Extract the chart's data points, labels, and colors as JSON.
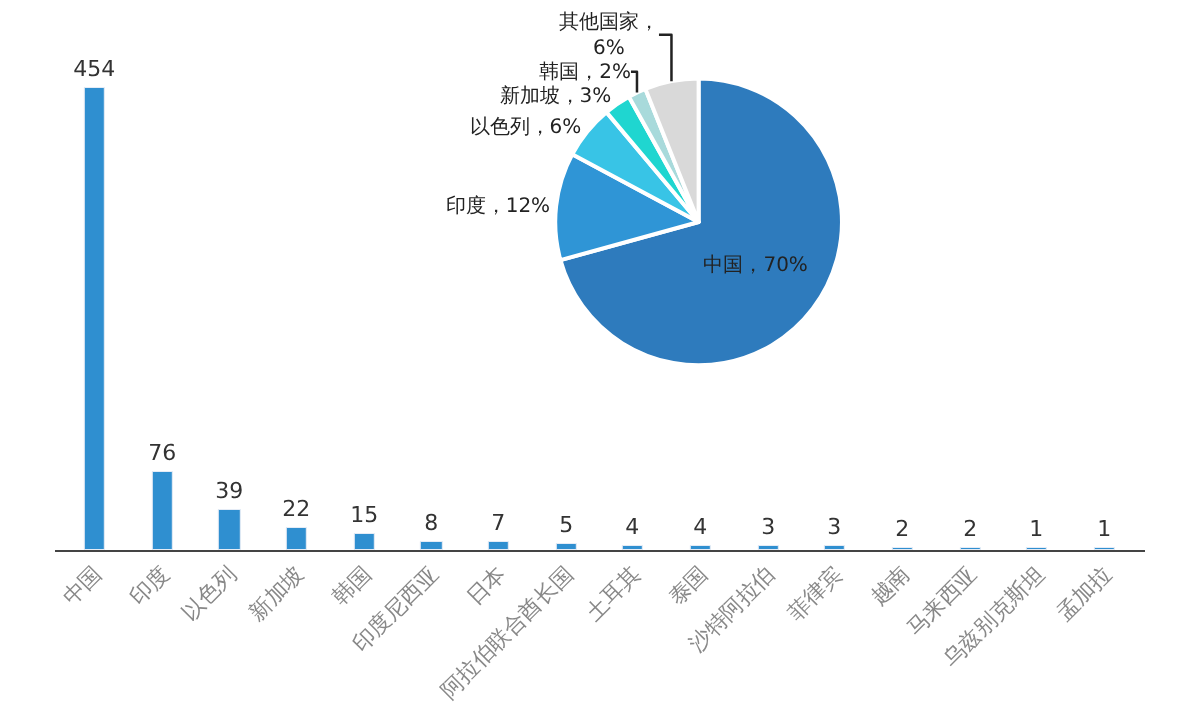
{
  "chart_data": [
    {
      "type": "bar",
      "categories": [
        "中国",
        "印度",
        "以色列",
        "新加坡",
        "韩国",
        "印度尼西亚",
        "日本",
        "阿拉伯联合酋长国",
        "土耳其",
        "泰国",
        "沙特阿拉伯",
        "菲律宾",
        "越南",
        "马来西亚",
        "乌兹别克斯坦",
        "孟加拉"
      ],
      "values": [
        454,
        76,
        39,
        22,
        15,
        8,
        7,
        5,
        4,
        4,
        3,
        3,
        2,
        2,
        1,
        1
      ],
      "color": "#2f8fd0",
      "data_labels": true,
      "legend": false
    },
    {
      "type": "pie",
      "categories": [
        "中国",
        "印度",
        "以色列",
        "新加坡",
        "韩国",
        "其他国家"
      ],
      "values": [
        70,
        12,
        6,
        3,
        2,
        6
      ],
      "colors": [
        "#2e7bbd",
        "#2f95d6",
        "#38c4e6",
        "#1fd6d0",
        "#a8dadb",
        "#d9d9d9"
      ],
      "value_labels": [
        "，70%",
        "，12%",
        "，6%",
        "，3%",
        "，2%",
        "，\n6%"
      ],
      "legend": false
    }
  ]
}
